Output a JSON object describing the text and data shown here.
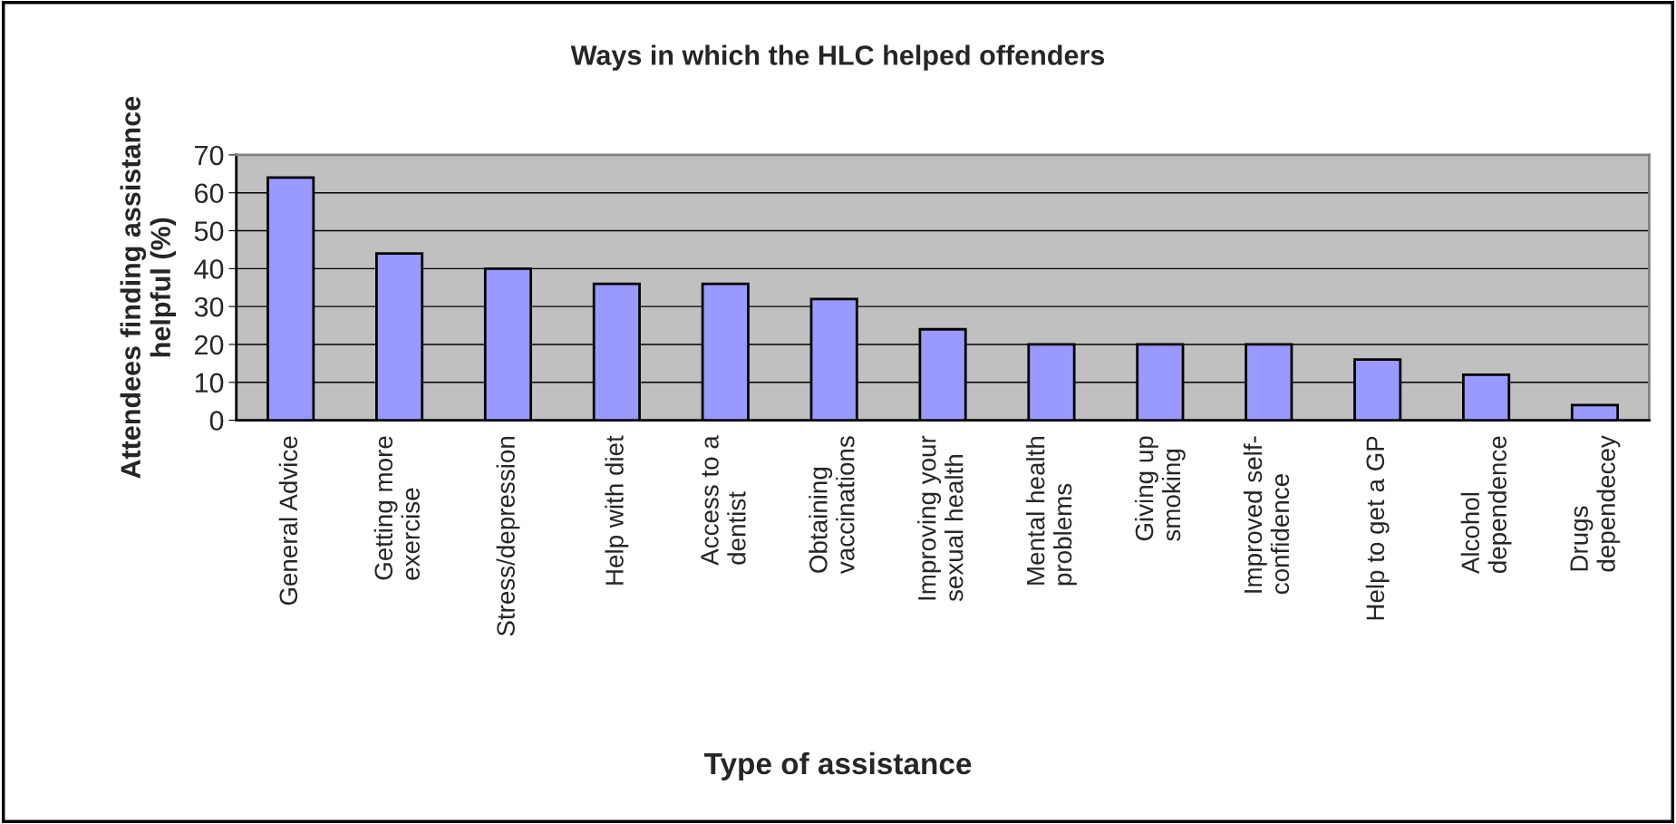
{
  "chart_data": {
    "type": "bar",
    "title": "Ways in which the HLC helped offenders",
    "xlabel": "Type of assistance",
    "ylabel": "Attendees finding assistance\nhelpful (%)",
    "categories": [
      "General Advice",
      "Getting more\nexercise",
      "Stress/depression",
      "Help with diet",
      "Access to a\ndentist",
      "Obtaining\nvaccinations",
      "Improving your\nsexual health",
      "Mental health\nproblems",
      "Giving up\nsmoking",
      "Improved self-\nconfidence",
      "Help to get a GP",
      "Alcohol\ndependence",
      "Drugs\ndependecey"
    ],
    "values": [
      64,
      44,
      40,
      36,
      36,
      32,
      24,
      20,
      20,
      20,
      16,
      12,
      4
    ],
    "color": "#9999ff",
    "ylim": [
      0,
      70
    ],
    "yticks": [
      0,
      10,
      20,
      30,
      40,
      50,
      60,
      70
    ],
    "grid": "y",
    "legend": false
  }
}
